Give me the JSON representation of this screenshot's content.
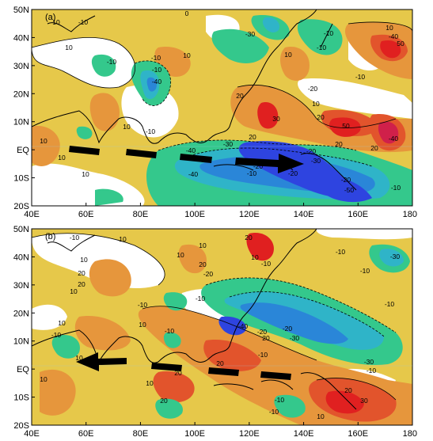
{
  "panels": [
    {
      "label": "(a)",
      "y_ticks": [
        "50N",
        "40N",
        "30N",
        "20N",
        "10N",
        "EQ",
        "10S",
        "20S"
      ],
      "x_ticks": [
        "40E",
        "60E",
        "80E",
        "100E",
        "120E",
        "140E",
        "160E",
        "180"
      ],
      "contour_labels": [
        "-10",
        "10",
        "20",
        "-20",
        "-30",
        "-40",
        "30",
        "40",
        "-50",
        "50",
        "0"
      ],
      "colors": {
        "pos1": "#e6c84a",
        "pos2": "#e6963c",
        "pos3": "#e2542c",
        "pos4": "#e02020",
        "pos5": "#d0204a",
        "neg1": "#34c88c",
        "neg2": "#2fb4c8",
        "neg3": "#2a86d8",
        "neg4": "#2e44e0",
        "zero": "#ffffff"
      }
    },
    {
      "label": "(b)",
      "y_ticks": [
        "50N",
        "40N",
        "30N",
        "20N",
        "10N",
        "EQ",
        "10S",
        "20S"
      ],
      "x_ticks": [
        "40E",
        "60E",
        "80E",
        "100E",
        "120E",
        "140E",
        "160E",
        "180"
      ],
      "contour_labels": [
        "-10",
        "10",
        "20",
        "-20",
        "-30",
        "30",
        "0",
        "-40"
      ]
    }
  ]
}
